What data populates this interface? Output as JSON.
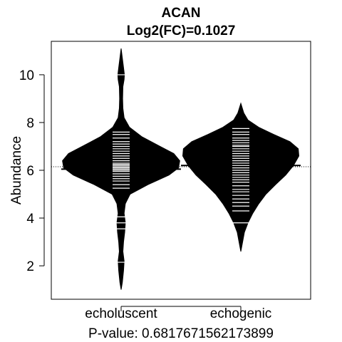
{
  "chart_data": {
    "type": "beanplot",
    "title": "ACAN",
    "subtitle": "Log2(FC)=0.1027",
    "xlabel": "P-value: 0.6817671562173899",
    "ylabel": "Abundance",
    "ylim": [
      0.6,
      11.4
    ],
    "yticks": [
      2,
      4,
      6,
      8,
      10
    ],
    "overall_mean": 6.15,
    "categories": [
      "echoluscent",
      "echogenic"
    ],
    "groups": [
      {
        "name": "echoluscent",
        "mean": 6.05,
        "density": [
          [
            1.0,
            0.0
          ],
          [
            1.3,
            0.02
          ],
          [
            1.8,
            0.04
          ],
          [
            2.2,
            0.05
          ],
          [
            2.6,
            0.03
          ],
          [
            3.0,
            0.04
          ],
          [
            3.4,
            0.06
          ],
          [
            3.8,
            0.07
          ],
          [
            4.2,
            0.05
          ],
          [
            4.6,
            0.07
          ],
          [
            5.0,
            0.15
          ],
          [
            5.4,
            0.45
          ],
          [
            5.8,
            0.8
          ],
          [
            6.1,
            0.96
          ],
          [
            6.4,
            0.98
          ],
          [
            6.7,
            0.88
          ],
          [
            7.0,
            0.65
          ],
          [
            7.4,
            0.35
          ],
          [
            7.8,
            0.14
          ],
          [
            8.2,
            0.05
          ],
          [
            8.6,
            0.03
          ],
          [
            9.0,
            0.025
          ],
          [
            9.5,
            0.03
          ],
          [
            9.8,
            0.05
          ],
          [
            10.0,
            0.055
          ],
          [
            10.3,
            0.04
          ],
          [
            10.7,
            0.02
          ],
          [
            11.1,
            0.0
          ]
        ],
        "points": [
          2.15,
          3.55,
          3.8,
          4.05,
          5.25,
          5.4,
          5.55,
          5.65,
          5.75,
          5.85,
          5.95,
          6.0,
          6.05,
          6.1,
          6.15,
          6.2,
          6.25,
          6.3,
          6.4,
          6.5,
          6.6,
          6.7,
          6.8,
          6.9,
          7.0,
          7.1,
          7.2,
          7.35,
          7.5,
          7.6,
          10.0
        ]
      },
      {
        "name": "echogenic",
        "mean": 6.2,
        "density": [
          [
            2.6,
            0.0
          ],
          [
            3.0,
            0.03
          ],
          [
            3.4,
            0.06
          ],
          [
            3.8,
            0.12
          ],
          [
            4.2,
            0.2
          ],
          [
            4.6,
            0.3
          ],
          [
            5.0,
            0.42
          ],
          [
            5.4,
            0.58
          ],
          [
            5.8,
            0.75
          ],
          [
            6.2,
            0.88
          ],
          [
            6.6,
            0.97
          ],
          [
            6.9,
            0.96
          ],
          [
            7.2,
            0.82
          ],
          [
            7.5,
            0.55
          ],
          [
            7.8,
            0.3
          ],
          [
            8.1,
            0.12
          ],
          [
            8.4,
            0.05
          ],
          [
            8.8,
            0.0
          ]
        ],
        "points": [
          3.8,
          4.3,
          4.5,
          4.65,
          4.8,
          4.95,
          5.1,
          5.2,
          5.35,
          5.5,
          5.6,
          5.7,
          5.8,
          5.9,
          6.0,
          6.1,
          6.2,
          6.3,
          6.4,
          6.5,
          6.6,
          6.7,
          6.8,
          6.9,
          7.0,
          7.05,
          7.15,
          7.25,
          7.35,
          7.5,
          7.6,
          7.75
        ]
      }
    ]
  }
}
